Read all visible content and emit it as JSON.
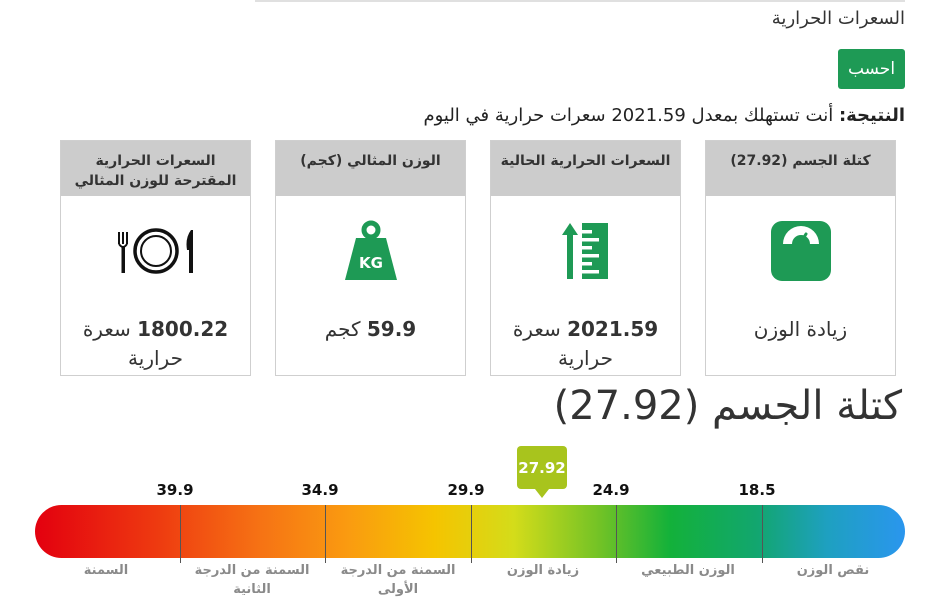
{
  "form": {
    "section_label": "السعرات الحرارية",
    "calculate_button": "احسب"
  },
  "result": {
    "label": "النتيجة:",
    "text": "أنت تستهلك بمعدل 2021.59 سعرات حرارية في اليوم"
  },
  "cards": [
    {
      "title": "كتلة الجسم (27.92)",
      "icon": "scale-icon",
      "value_bold": "",
      "value_text": "زيادة الوزن"
    },
    {
      "title": "السعرات الحرارية الحالية",
      "icon": "calorie-meter-icon",
      "value_bold": "2021.59",
      "value_text": "سعرة حرارية"
    },
    {
      "title": "الوزن المثالي (كجم)",
      "icon": "weight-kg-icon",
      "icon_text": "KG",
      "value_bold": "59.9",
      "value_text": "كجم"
    },
    {
      "title": "السعرات الحرارية المقترحة للوزن المثالي",
      "icon": "plate-cutlery-icon",
      "value_bold": "1800.22",
      "value_text": "سعرة حرارية"
    }
  ],
  "bmi_scale": {
    "title": "كتلة الجسم (27.92)",
    "current_value": "27.92",
    "current_bmi": 27.92,
    "thresholds": [
      "39.9",
      "34.9",
      "29.9",
      "24.9",
      "18.5"
    ],
    "categories": [
      "السمنة",
      "السمنة من الدرجة الثانية",
      "السمنة من الدرجة الأولى",
      "زيادة الوزن",
      "الوزن الطبيعي",
      "نقص الوزن"
    ],
    "colors": {
      "accent_green": "#1e9a55",
      "marker": "#a8c41d",
      "icon_green": "#1e9a55"
    }
  }
}
